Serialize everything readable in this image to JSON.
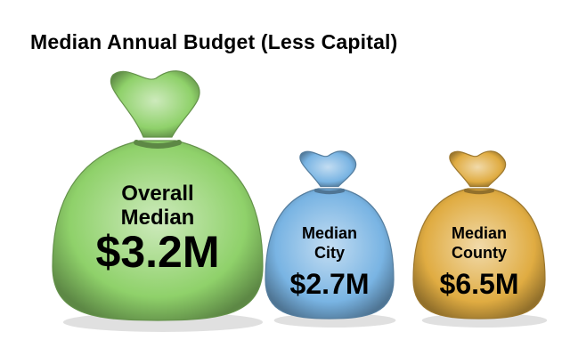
{
  "chart_data": {
    "type": "pictograph",
    "title": "Median Annual Budget (Less Capital)",
    "categories": [
      {
        "label_lines": [
          "Overall",
          "Median"
        ],
        "value": 3.2,
        "value_label": "$3.2M",
        "color": "#8fd16a"
      },
      {
        "label_lines": [
          "Median",
          "City"
        ],
        "value": 2.7,
        "value_label": "$2.7M",
        "color": "#79b4e3"
      },
      {
        "label_lines": [
          "Median",
          "County"
        ],
        "value": 6.5,
        "value_label": "$6.5M",
        "color": "#e0ac42"
      }
    ],
    "unit": "USD millions"
  }
}
